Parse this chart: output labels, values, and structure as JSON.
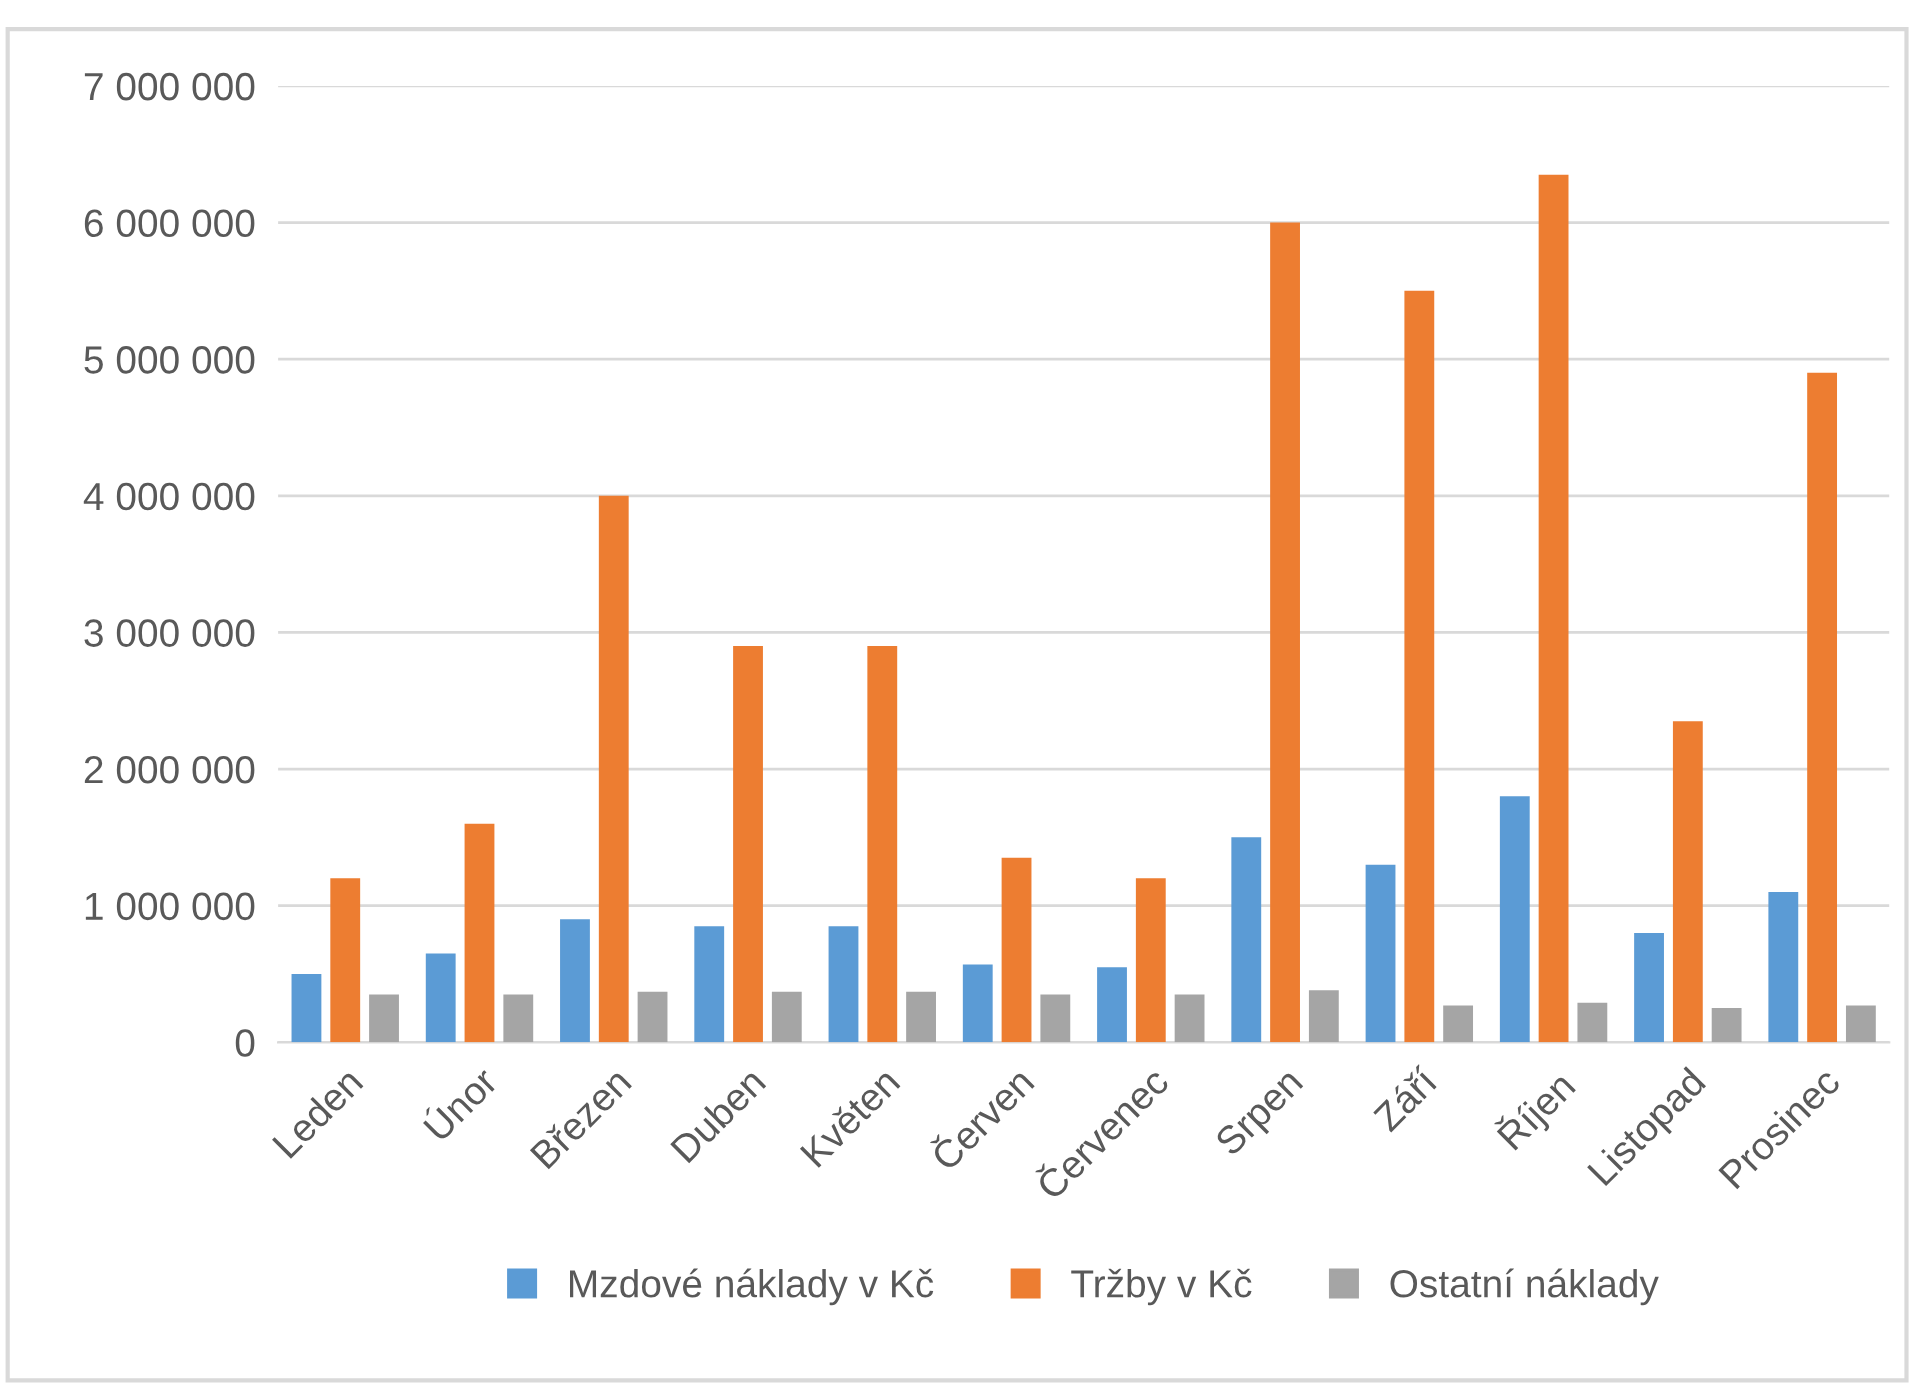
{
  "chart_data": {
    "type": "bar",
    "categories": [
      "Leden",
      "Únor",
      "Březen",
      "Duben",
      "Květen",
      "Červen",
      "Červenec",
      "Srpen",
      "Září",
      "Říjen",
      "Listopad",
      "Prosinec"
    ],
    "series": [
      {
        "name": "Mzdové náklady v Kč",
        "color": "#5b9bd5",
        "values": [
          500000,
          650000,
          900000,
          850000,
          850000,
          570000,
          550000,
          1500000,
          1300000,
          1800000,
          800000,
          1100000
        ]
      },
      {
        "name": "Tržby v Kč",
        "color": "#ed7d31",
        "values": [
          1200000,
          1600000,
          4000000,
          2900000,
          2900000,
          1350000,
          1200000,
          6000000,
          5500000,
          6350000,
          2350000,
          4900000
        ]
      },
      {
        "name": "Ostatní náklady",
        "color": "#a5a5a5",
        "values": [
          350000,
          350000,
          370000,
          370000,
          370000,
          350000,
          350000,
          380000,
          270000,
          290000,
          250000,
          270000
        ]
      }
    ],
    "ylim": [
      0,
      7000000
    ],
    "yticks": [
      0,
      {
        "value": 1000000,
        "label": "1 000 000"
      },
      {
        "value": 2000000,
        "label": "2 000 000"
      },
      {
        "value": 3000000,
        "label": "3 000 000"
      },
      {
        "value": 4000000,
        "label": "4 000 000"
      },
      {
        "value": 5000000,
        "label": "5 000 000"
      },
      {
        "value": 6000000,
        "label": "6 000 000"
      },
      {
        "value": 7000000,
        "label": "7 000 000"
      }
    ],
    "grid": "y",
    "legend": "bottom"
  }
}
